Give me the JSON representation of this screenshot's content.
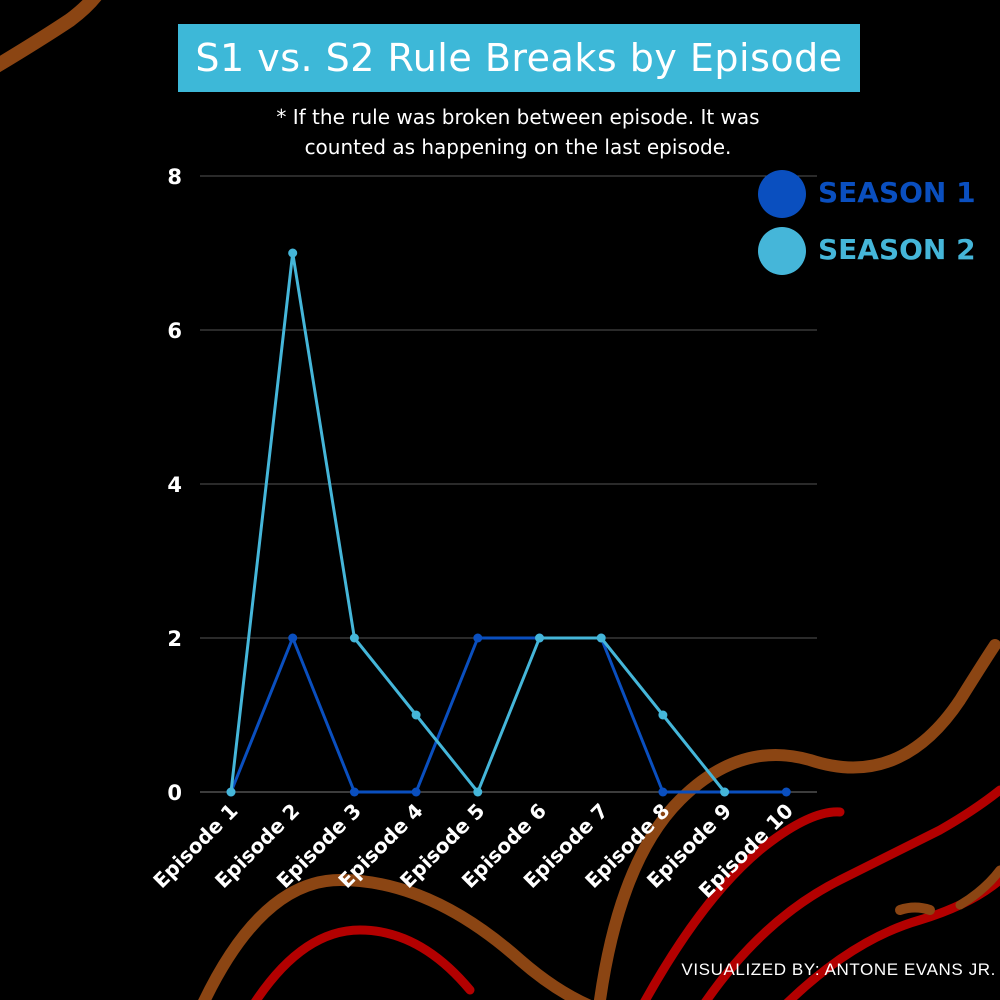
{
  "title": "S1 vs. S2 Rule Breaks by Episode",
  "subtitle_lines": [
    "* If the rule was broken between episode. It was",
    "counted as happening on the last episode."
  ],
  "credit": "VISUALIZED BY: ANTONE EVANS JR.",
  "colors": {
    "background": "#000000",
    "title_box": "#3db8d8",
    "season1": "#0a4fbf",
    "season2": "#45b6d9",
    "grid": "#555555",
    "deco_brown": "#8b4513",
    "deco_red": "#b30000"
  },
  "chart_data": {
    "type": "line",
    "title": "S1 vs. S2 Rule Breaks by Episode",
    "categories": [
      "Episode 1",
      "Episode 2",
      "Episode 3",
      "Episode 4",
      "Episode 5",
      "Episode 6",
      "Episode 7",
      "Episode 8",
      "Episode 9",
      "Episode 10"
    ],
    "series": [
      {
        "name": "SEASON 1",
        "color": "#0a4fbf",
        "values": [
          0,
          2,
          0,
          0,
          2,
          2,
          2,
          0,
          0,
          0
        ]
      },
      {
        "name": "SEASON 2",
        "color": "#45b6d9",
        "values": [
          0,
          7,
          2,
          1,
          0,
          2,
          2,
          1,
          0,
          null
        ]
      }
    ],
    "ylim": [
      0,
      8
    ],
    "yticks": [
      0,
      2,
      4,
      6,
      8
    ],
    "grid": true,
    "legend_position": "top-right"
  }
}
